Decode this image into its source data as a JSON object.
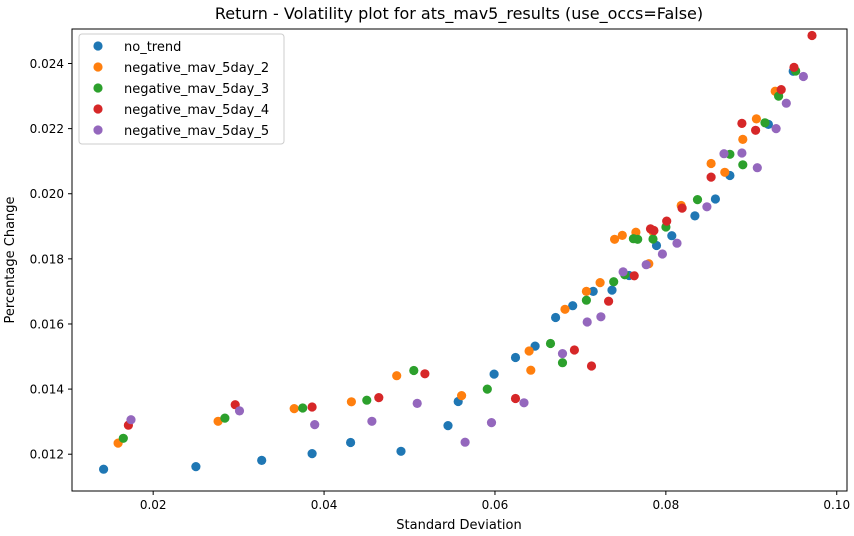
{
  "chart_data": {
    "type": "scatter",
    "title": "Return - Volatility plot for ats_mav5_results (use_occs=False)",
    "xlabel": "Standard Deviation",
    "ylabel": "Percentage Change",
    "xlim": [
      0.0105,
      0.1012
    ],
    "ylim": [
      0.01087,
      0.02506
    ],
    "xticks": [
      0.02,
      0.04,
      0.06,
      0.08,
      0.1
    ],
    "xtick_labels": [
      "0.02",
      "0.04",
      "0.06",
      "0.08",
      "0.10"
    ],
    "yticks": [
      0.012,
      0.014,
      0.016,
      0.018,
      0.02,
      0.022,
      0.024
    ],
    "ytick_labels": [
      "0.012",
      "0.014",
      "0.016",
      "0.018",
      "0.020",
      "0.022",
      "0.024"
    ],
    "grid": false,
    "legend_position": "upper-left",
    "series": [
      {
        "name": "no_trend",
        "color": "#1f77b4",
        "x": [
          0.0142,
          0.025,
          0.0327,
          0.0386,
          0.0431,
          0.049,
          0.0545,
          0.0557,
          0.0599,
          0.0624,
          0.0647,
          0.0671,
          0.0691,
          0.0715,
          0.0737,
          0.0757,
          0.0789,
          0.0807,
          0.0834,
          0.0858,
          0.0875,
          0.092,
          0.0949
        ],
        "y": [
          0.01154,
          0.01162,
          0.01181,
          0.01202,
          0.01236,
          0.01209,
          0.01288,
          0.01362,
          0.01446,
          0.01497,
          0.01532,
          0.0162,
          0.01656,
          0.017,
          0.01704,
          0.01749,
          0.01841,
          0.01871,
          0.01932,
          0.01984,
          0.02056,
          0.02213,
          0.02376
        ]
      },
      {
        "name": "negative_mav_5day_2",
        "color": "#ff7f0e",
        "x": [
          0.0159,
          0.0276,
          0.0365,
          0.0432,
          0.0485,
          0.0561,
          0.064,
          0.0642,
          0.0682,
          0.0707,
          0.0723,
          0.074,
          0.0749,
          0.0765,
          0.078,
          0.0785,
          0.0818,
          0.0853,
          0.0869,
          0.089,
          0.0906,
          0.0928
        ],
        "y": [
          0.01234,
          0.01301,
          0.0134,
          0.01361,
          0.01441,
          0.0138,
          0.01517,
          0.01458,
          0.01645,
          0.017,
          0.01727,
          0.0186,
          0.01872,
          0.01882,
          0.01785,
          0.01884,
          0.01964,
          0.02093,
          0.02066,
          0.02167,
          0.0223,
          0.02315
        ]
      },
      {
        "name": "negative_mav_5day_3",
        "color": "#2ca02c",
        "x": [
          0.0165,
          0.0284,
          0.0375,
          0.045,
          0.0505,
          0.0591,
          0.0665,
          0.0679,
          0.0707,
          0.0739,
          0.0752,
          0.0762,
          0.0767,
          0.0785,
          0.08,
          0.0837,
          0.0875,
          0.089,
          0.0916,
          0.0932,
          0.0952
        ],
        "y": [
          0.01249,
          0.01311,
          0.01342,
          0.01366,
          0.01457,
          0.014,
          0.0154,
          0.01481,
          0.01673,
          0.0173,
          0.01751,
          0.01862,
          0.0186,
          0.01861,
          0.01898,
          0.01982,
          0.02121,
          0.02089,
          0.02218,
          0.023,
          0.02377
        ]
      },
      {
        "name": "negative_mav_5day_4",
        "color": "#d62728",
        "x": [
          0.0171,
          0.0296,
          0.0386,
          0.0464,
          0.0518,
          0.0624,
          0.0693,
          0.0713,
          0.0733,
          0.0763,
          0.0782,
          0.0786,
          0.0801,
          0.0819,
          0.0853,
          0.0889,
          0.0905,
          0.0935,
          0.095,
          0.0971
        ],
        "y": [
          0.01289,
          0.01352,
          0.01345,
          0.01374,
          0.01447,
          0.01371,
          0.0152,
          0.01471,
          0.0167,
          0.01748,
          0.01892,
          0.01887,
          0.01916,
          0.01956,
          0.02051,
          0.02216,
          0.02195,
          0.0232,
          0.02388,
          0.02486
        ]
      },
      {
        "name": "negative_mav_5day_5",
        "color": "#9467bd",
        "x": [
          0.0174,
          0.0301,
          0.0389,
          0.0456,
          0.0509,
          0.0565,
          0.0596,
          0.0634,
          0.0679,
          0.0708,
          0.0724,
          0.075,
          0.0777,
          0.0796,
          0.0813,
          0.0848,
          0.0868,
          0.0889,
          0.0907,
          0.0929,
          0.0941,
          0.0961
        ],
        "y": [
          0.01306,
          0.01333,
          0.01291,
          0.01301,
          0.01356,
          0.01237,
          0.01297,
          0.01358,
          0.01509,
          0.01606,
          0.01622,
          0.0176,
          0.01782,
          0.01815,
          0.01848,
          0.0196,
          0.02123,
          0.02125,
          0.0208,
          0.022,
          0.02278,
          0.0236
        ]
      }
    ]
  }
}
